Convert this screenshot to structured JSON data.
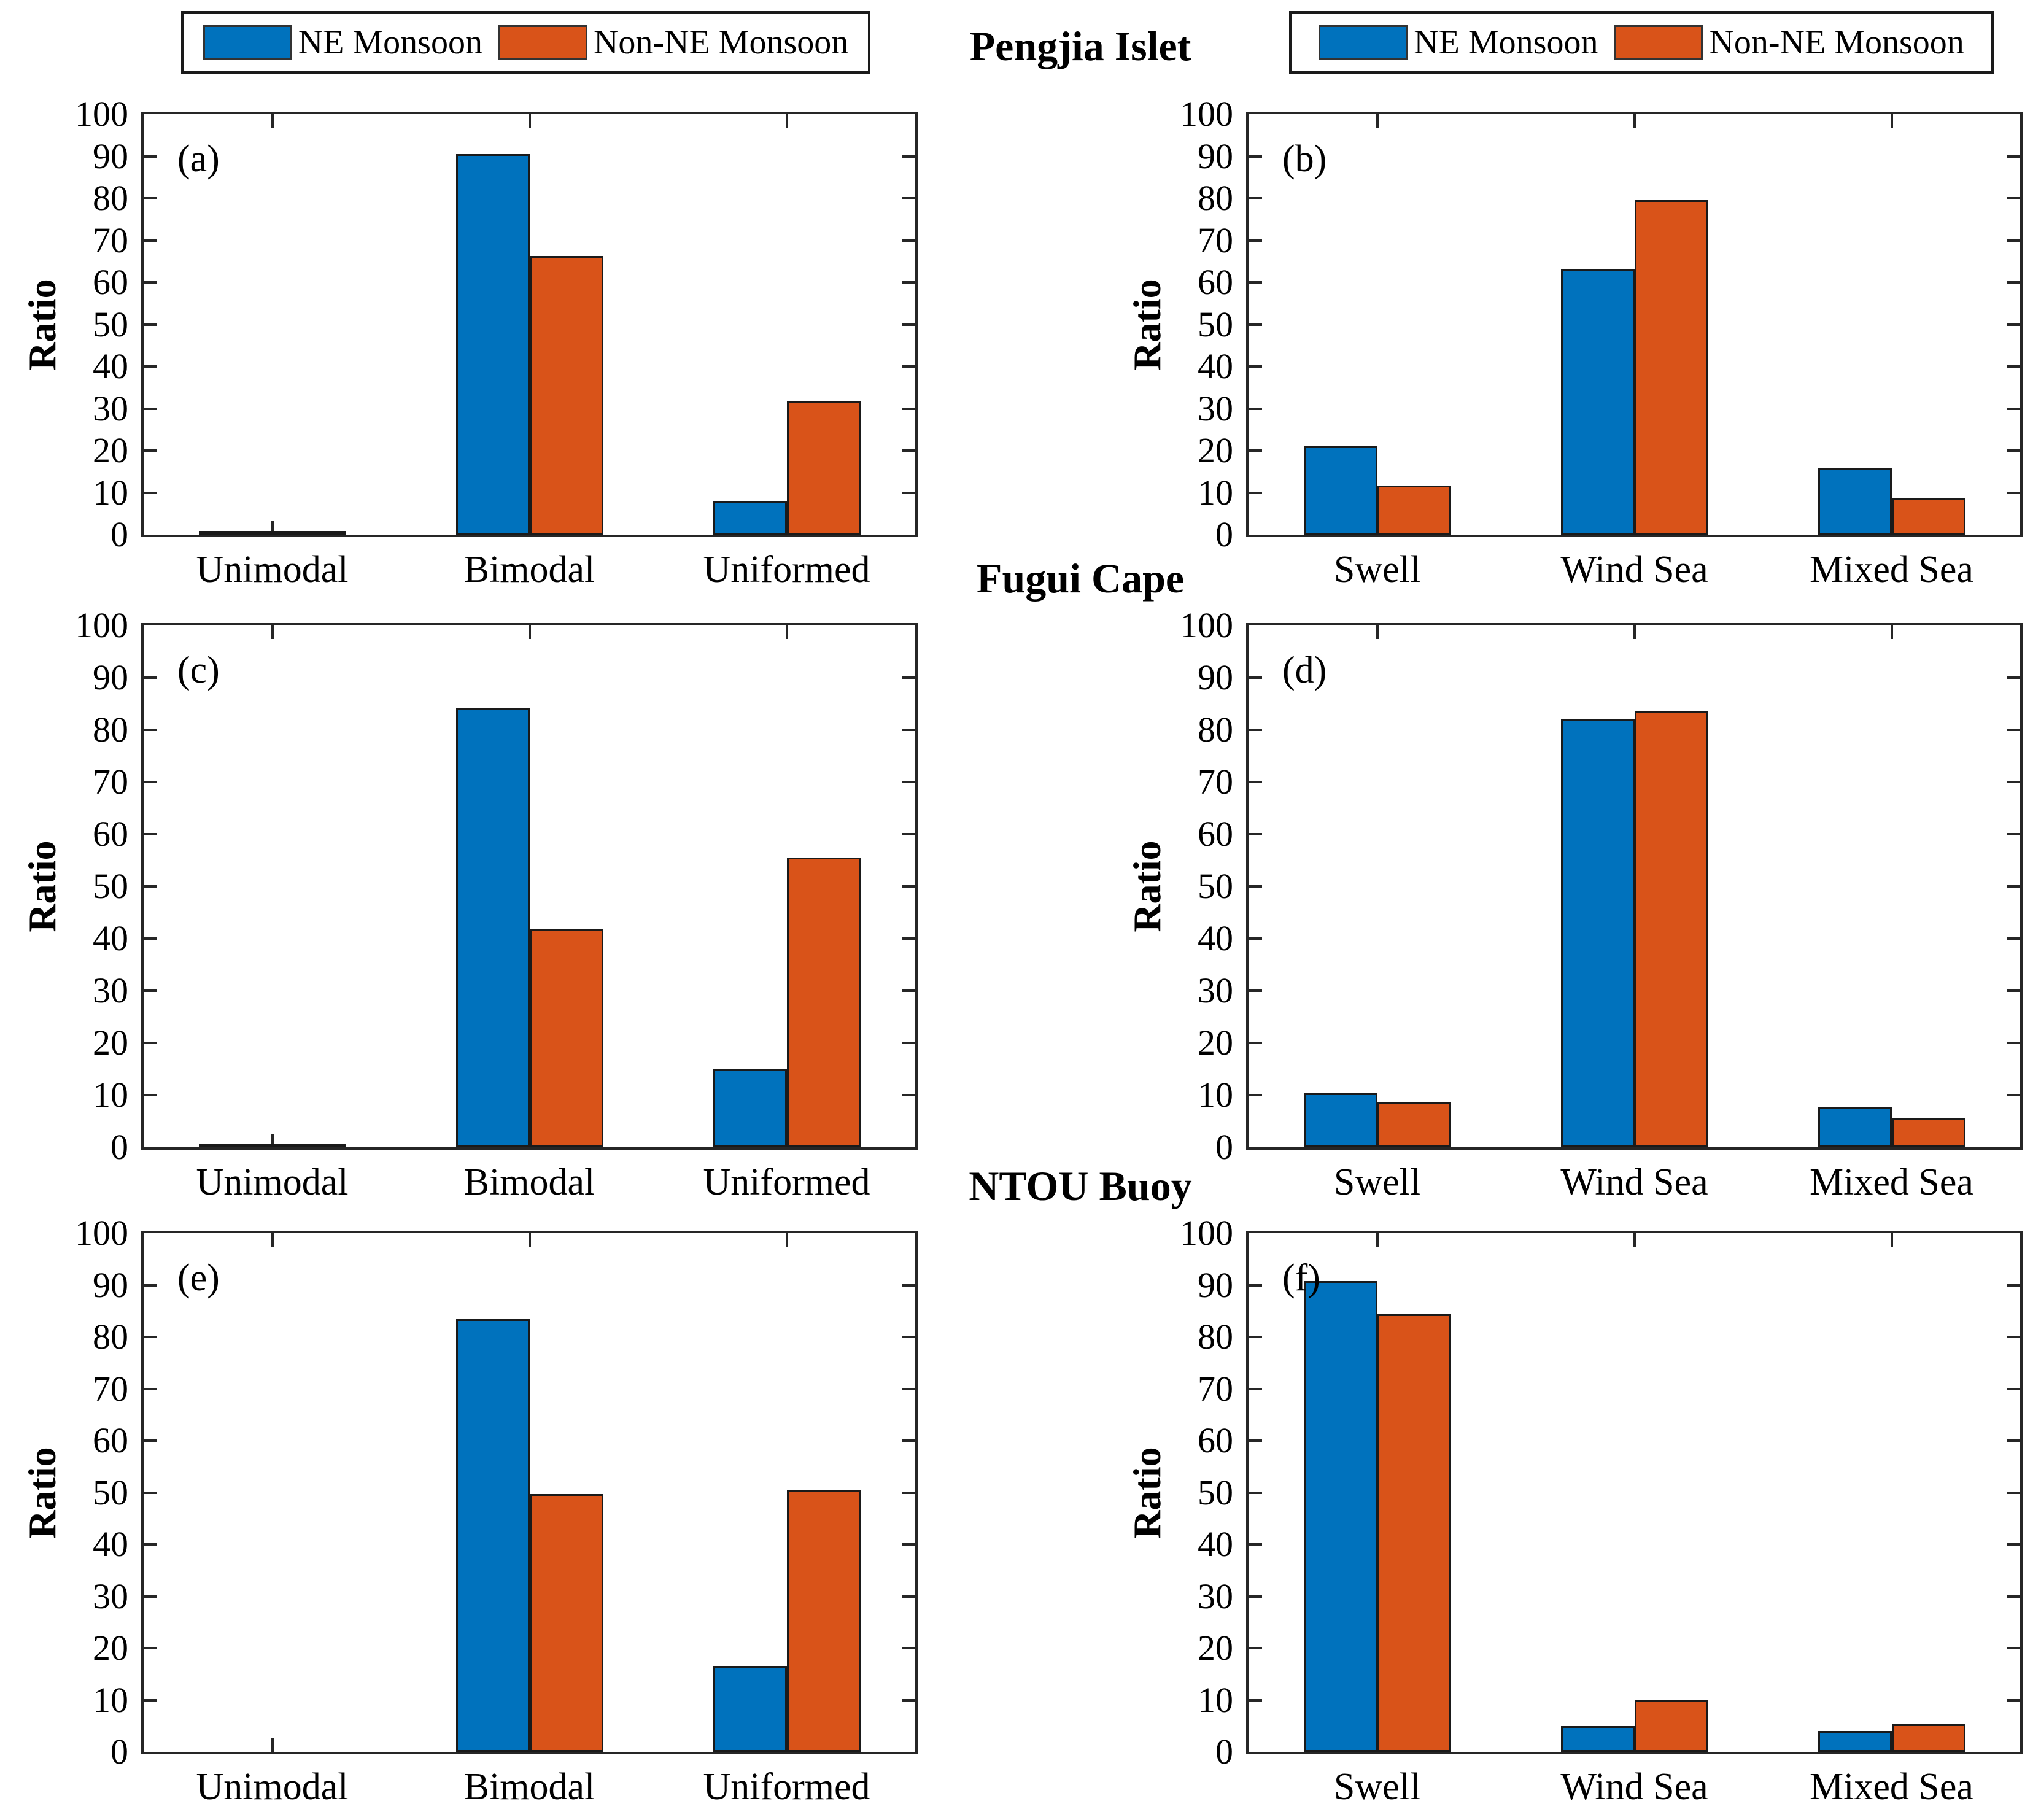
{
  "figure": {
    "row_titles": [
      {
        "text": "Pengjia Islet"
      },
      {
        "text": "Fugui Cape"
      },
      {
        "text": "NTOU Buoy"
      }
    ],
    "legend": {
      "position": "top",
      "items": [
        {
          "label": "NE Monsoon",
          "color": "#0072BD"
        },
        {
          "label": "Non-NE Monsoon",
          "color": "#D95319"
        }
      ]
    },
    "colors": {
      "ne_monsoon": "#0072BD",
      "non_ne_monsoon": "#D95319",
      "bar_edge": "#1a1a1a",
      "axis": "#262626"
    }
  },
  "chart_data": [
    {
      "id": "a",
      "type": "bar",
      "panel_label": "(a)",
      "row": 0,
      "col": 0,
      "categories": [
        "Unimodal",
        "Bimodal",
        "Uniformed"
      ],
      "series": [
        {
          "name": "NE Monsoon",
          "values": [
            0.4,
            90.5,
            7.9
          ]
        },
        {
          "name": "Non-NE Monsoon",
          "values": [
            0.4,
            66.3,
            31.7
          ]
        }
      ],
      "xlabel": "",
      "ylabel": "Ratio",
      "ylim": [
        0,
        100
      ],
      "ytick_step": 10,
      "grid": false
    },
    {
      "id": "b",
      "type": "bar",
      "panel_label": "(b)",
      "row": 0,
      "col": 1,
      "categories": [
        "Swell",
        "Wind Sea",
        "Mixed Sea"
      ],
      "series": [
        {
          "name": "NE Monsoon",
          "values": [
            21.0,
            63.0,
            15.9
          ]
        },
        {
          "name": "Non-NE Monsoon",
          "values": [
            11.7,
            79.5,
            8.7
          ]
        }
      ],
      "xlabel": "",
      "ylabel": "Ratio",
      "ylim": [
        0,
        100
      ],
      "ytick_step": 10,
      "grid": false
    },
    {
      "id": "c",
      "type": "bar",
      "panel_label": "(c)",
      "row": 1,
      "col": 0,
      "categories": [
        "Unimodal",
        "Bimodal",
        "Uniformed"
      ],
      "series": [
        {
          "name": "NE Monsoon",
          "values": [
            0.3,
            84.2,
            15.0
          ]
        },
        {
          "name": "Non-NE Monsoon",
          "values": [
            0.7,
            41.8,
            55.5
          ]
        }
      ],
      "xlabel": "",
      "ylabel": "Ratio",
      "ylim": [
        0,
        100
      ],
      "ytick_step": 10,
      "grid": false
    },
    {
      "id": "d",
      "type": "bar",
      "panel_label": "(d)",
      "row": 1,
      "col": 1,
      "categories": [
        "Swell",
        "Wind Sea",
        "Mixed Sea"
      ],
      "series": [
        {
          "name": "NE Monsoon",
          "values": [
            10.4,
            82.0,
            7.8
          ]
        },
        {
          "name": "Non-NE Monsoon",
          "values": [
            8.6,
            83.5,
            5.6
          ]
        }
      ],
      "xlabel": "",
      "ylabel": "Ratio",
      "ylim": [
        0,
        100
      ],
      "ytick_step": 10,
      "grid": false
    },
    {
      "id": "e",
      "type": "bar",
      "panel_label": "(e)",
      "row": 2,
      "col": 0,
      "categories": [
        "Unimodal",
        "Bimodal",
        "Uniformed"
      ],
      "series": [
        {
          "name": "NE Monsoon",
          "values": [
            0,
            83.4,
            16.6
          ]
        },
        {
          "name": "Non-NE Monsoon",
          "values": [
            0,
            49.7,
            50.4
          ]
        }
      ],
      "xlabel": "",
      "ylabel": "Ratio",
      "ylim": [
        0,
        100
      ],
      "ytick_step": 10,
      "grid": false
    },
    {
      "id": "f",
      "type": "bar",
      "panel_label": "(f)",
      "row": 2,
      "col": 1,
      "categories": [
        "Swell",
        "Wind Sea",
        "Mixed Sea"
      ],
      "series": [
        {
          "name": "NE Monsoon",
          "values": [
            90.8,
            5.0,
            4.0
          ]
        },
        {
          "name": "Non-NE Monsoon",
          "values": [
            84.4,
            10.1,
            5.3
          ]
        }
      ],
      "xlabel": "",
      "ylabel": "Ratio",
      "ylim": [
        0,
        100
      ],
      "ytick_step": 10,
      "grid": false
    }
  ]
}
